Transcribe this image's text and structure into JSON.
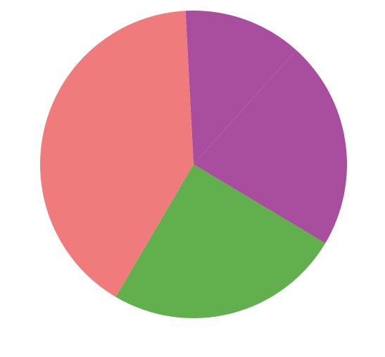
{
  "chart_data": {
    "type": "pie",
    "start_angle_deg": -3,
    "direction": "clockwise",
    "slices": [
      {
        "value": 12.5,
        "color": "#a94d9f"
      },
      {
        "value": 21.9,
        "color": "#a94d9f"
      },
      {
        "value": 24.9,
        "color": "#61b04d"
      },
      {
        "value": 40.7,
        "color": "#ef7b7d"
      }
    ],
    "title": "",
    "legend": "none"
  }
}
